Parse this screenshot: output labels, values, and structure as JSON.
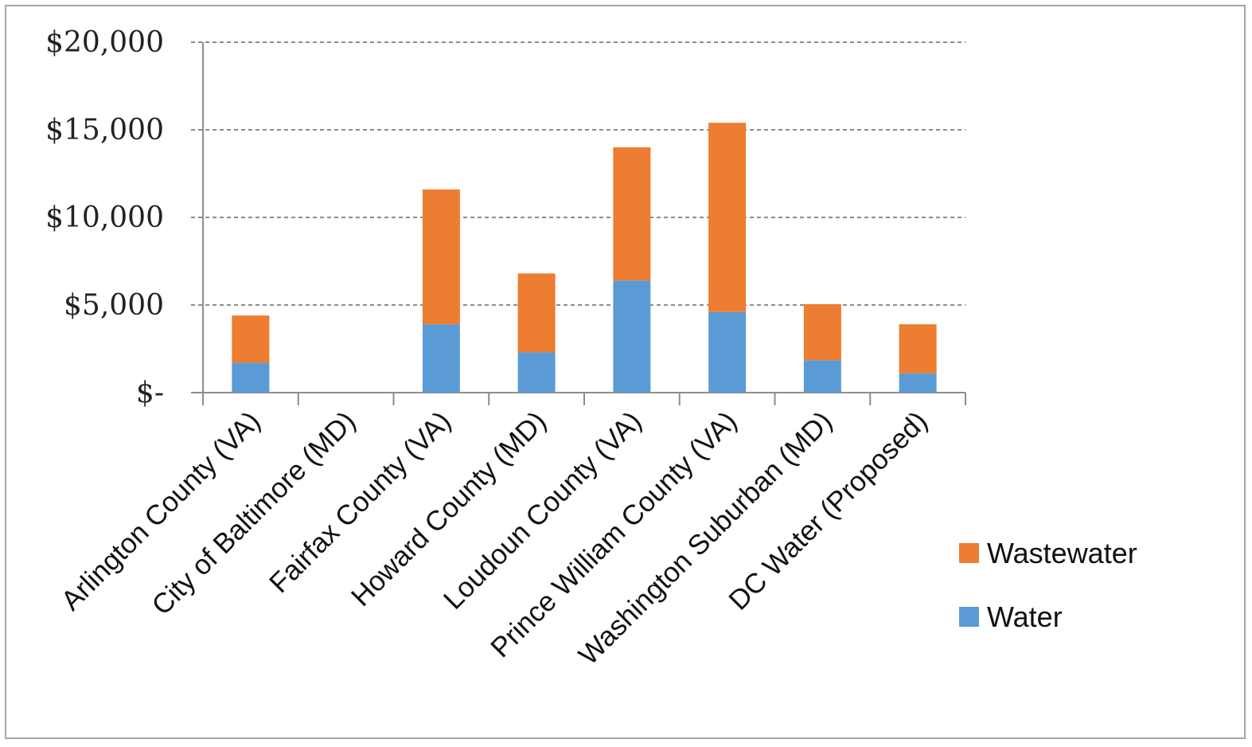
{
  "chart_data": {
    "type": "bar",
    "stacked": true,
    "title": "",
    "xlabel": "",
    "ylabel": "",
    "categories": [
      "Arlington County (VA)",
      "City of Baltimore (MD)",
      "Fairfax County (VA)",
      "Howard County (MD)",
      "Loudoun County (VA)",
      "Prince William County (VA)",
      "Washington Suburban (MD)",
      "DC Water (Proposed)"
    ],
    "series": [
      {
        "name": "Water",
        "color": "#5b9bd5",
        "values": [
          1700,
          0,
          3900,
          2300,
          6400,
          4600,
          1850,
          1100
        ]
      },
      {
        "name": "Wastewater",
        "color": "#ed7d31",
        "values": [
          2700,
          0,
          7700,
          4500,
          7600,
          10800,
          3200,
          2800
        ]
      }
    ],
    "ylim": [
      0,
      20000
    ],
    "yticks": [
      0,
      5000,
      10000,
      15000,
      20000
    ],
    "ytick_labels": [
      "$-",
      "$5,000",
      "$10,000",
      "$15,000",
      "$20,000"
    ],
    "grid": true,
    "legend_position": "right"
  }
}
